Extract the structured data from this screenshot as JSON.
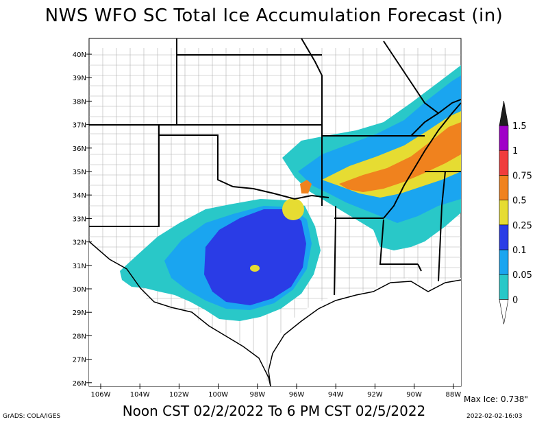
{
  "title": "NWS WFO SC Total Ice Accumulation Forecast (in)",
  "subtitle": "Noon CST 02/2/2022 To 6 PM CST 02/5/2022",
  "credit": "GrADS: COLA/IGES",
  "max_ice": "Max Ice: 0.738\"",
  "timestamp": "2022-02-02-16:03",
  "latitude_labels": [
    "40N",
    "39N",
    "38N",
    "37N",
    "36N",
    "35N",
    "34N",
    "33N",
    "32N",
    "31N",
    "30N",
    "29N",
    "28N",
    "27N",
    "26N"
  ],
  "longitude_labels": [
    "106W",
    "104W",
    "102W",
    "100W",
    "98W",
    "96W",
    "94W",
    "92W",
    "90W",
    "88W"
  ],
  "legend": {
    "labels": [
      "0",
      "0.05",
      "0.1",
      "0.25",
      "0.5",
      "0.75",
      "1",
      "1.5"
    ],
    "colors": [
      "#29c8c8",
      "#1aa5f0",
      "#2a3ce6",
      "#e6dc32",
      "#f0821e",
      "#f03c3c",
      "#a000c8",
      "#1e1e1e"
    ]
  },
  "colors": {
    "cyan": "#29c8c8",
    "light_blue": "#1aa5f0",
    "blue": "#2a3ce6",
    "yellow": "#e6dc32",
    "orange": "#f0821e",
    "state_border": "#000000",
    "county_border": "#a0a0a0"
  }
}
